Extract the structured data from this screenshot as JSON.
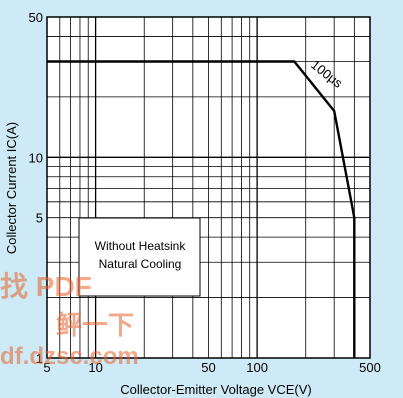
{
  "chart_data": {
    "type": "line",
    "xlabel": "Collector-Emitter Voltage VCE(V)",
    "ylabel": "Collector Current IC(A)",
    "xscale": "log",
    "yscale": "log",
    "xlim": [
      5,
      500
    ],
    "ylim": [
      1,
      50
    ],
    "x_ticks": [
      {
        "value": 5,
        "label": "5"
      },
      {
        "value": 10,
        "label": "10"
      },
      {
        "value": 50,
        "label": "50"
      },
      {
        "value": 100,
        "label": "100"
      },
      {
        "value": 500,
        "label": "500"
      }
    ],
    "y_ticks": [
      {
        "value": 1,
        "label": "1"
      },
      {
        "value": 5,
        "label": "5"
      },
      {
        "value": 10,
        "label": "10"
      },
      {
        "value": 50,
        "label": "50"
      }
    ],
    "grid": true,
    "series": [
      {
        "name": "100μs",
        "x": [
          5,
          170,
          300,
          400,
          400
        ],
        "y": [
          30,
          30,
          17,
          5,
          1
        ]
      }
    ],
    "annotations": [
      {
        "text": "100μs",
        "x": 260,
        "y": 25
      },
      {
        "lines": [
          "Without Heatsink",
          "Natural Cooling"
        ],
        "boxed": true
      }
    ]
  },
  "watermark": {
    "line1": "找 PDF",
    "line2": "鲆一下",
    "url": "df.dzsc.com"
  }
}
